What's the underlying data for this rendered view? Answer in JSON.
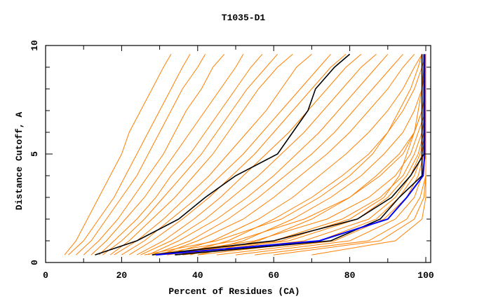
{
  "chart_data": {
    "type": "line",
    "title": "T1035-D1",
    "xlabel": "Percent of Residues (CA)",
    "ylabel": "Distance Cutoff, A",
    "xlim": [
      0,
      100
    ],
    "ylim": [
      0,
      10
    ],
    "x_ticks": [
      "0",
      "20",
      "40",
      "60",
      "80",
      "100"
    ],
    "y_ticks": [
      "0",
      "5",
      "10"
    ],
    "grid": false,
    "legend": "none",
    "colors": {
      "models": "#ff8000",
      "highlight": "#000000",
      "best": "#0000ff"
    },
    "cutoffs": [
      0.35,
      1,
      2,
      3,
      4,
      5,
      6,
      7,
      8,
      9,
      9.6
    ],
    "model_series": [
      [
        5,
        8,
        11,
        14,
        17,
        20,
        22,
        25,
        28,
        31,
        33
      ],
      [
        6,
        10,
        14,
        18,
        21,
        24,
        27,
        30,
        33,
        36,
        38
      ],
      [
        8,
        12,
        16,
        20,
        24,
        27,
        30,
        33,
        36,
        40,
        42
      ],
      [
        10,
        14,
        19,
        23,
        27,
        31,
        34,
        37,
        41,
        44,
        47
      ],
      [
        12,
        16,
        21,
        26,
        30,
        34,
        38,
        42,
        46,
        50,
        52
      ],
      [
        14,
        18,
        24,
        29,
        33,
        38,
        42,
        46,
        50,
        54,
        57
      ],
      [
        15,
        20,
        26,
        31,
        36,
        41,
        45,
        49,
        53,
        58,
        61
      ],
      [
        17,
        22,
        28,
        34,
        39,
        44,
        48,
        52,
        56,
        61,
        65
      ],
      [
        18,
        24,
        31,
        37,
        43,
        48,
        53,
        58,
        62,
        66,
        70
      ],
      [
        20,
        26,
        33,
        40,
        46,
        52,
        57,
        62,
        67,
        72,
        75
      ],
      [
        22,
        28,
        36,
        43,
        49,
        55,
        60,
        65,
        70,
        75,
        79
      ],
      [
        24,
        31,
        39,
        46,
        52,
        58,
        64,
        69,
        74,
        79,
        83
      ],
      [
        25,
        33,
        42,
        49,
        56,
        62,
        68,
        73,
        78,
        83,
        87
      ],
      [
        27,
        35,
        45,
        53,
        60,
        66,
        72,
        77,
        82,
        87,
        90
      ],
      [
        28,
        38,
        48,
        56,
        63,
        70,
        76,
        81,
        86,
        91,
        94
      ],
      [
        30,
        40,
        52,
        60,
        67,
        74,
        80,
        85,
        90,
        94,
        97
      ],
      [
        32,
        44,
        56,
        65,
        72,
        79,
        85,
        90,
        94,
        97,
        99
      ],
      [
        35,
        48,
        60,
        70,
        78,
        85,
        90,
        94,
        97,
        99,
        100
      ],
      [
        38,
        52,
        65,
        75,
        83,
        89,
        94,
        97,
        99,
        100,
        100
      ],
      [
        40,
        56,
        70,
        80,
        87,
        93,
        97,
        99,
        100,
        100,
        100
      ],
      [
        26,
        45,
        62,
        72,
        80,
        86,
        90,
        93,
        96,
        98,
        99
      ],
      [
        28,
        50,
        68,
        80,
        88,
        94,
        97,
        99,
        100,
        100,
        100
      ],
      [
        30,
        55,
        74,
        85,
        92,
        96,
        98,
        100,
        100,
        100,
        100
      ],
      [
        30,
        62,
        80,
        89,
        93,
        95,
        97,
        98,
        99,
        99.5,
        100
      ],
      [
        32,
        60,
        78,
        88,
        94,
        97,
        99,
        100,
        100,
        100,
        100
      ],
      [
        34,
        64,
        82,
        90,
        95,
        98,
        99.5,
        100,
        100,
        100,
        100
      ],
      [
        36,
        68,
        85,
        92,
        96,
        98.5,
        100,
        100,
        100,
        100,
        100
      ],
      [
        40,
        72,
        87,
        93,
        97,
        99,
        100,
        100,
        100,
        100,
        100
      ],
      [
        45,
        76,
        89,
        95,
        98,
        99.5,
        100,
        100,
        100,
        100,
        100
      ],
      [
        50,
        80,
        92,
        97,
        99,
        100,
        100,
        100,
        100,
        100,
        100
      ],
      [
        55,
        85,
        95,
        98.5,
        100,
        100,
        100,
        100,
        100,
        100,
        100
      ],
      [
        60,
        88,
        97,
        99.5,
        100,
        100,
        100,
        100,
        100,
        100,
        100
      ],
      [
        70,
        92,
        99,
        100,
        100,
        100,
        100,
        100,
        100,
        100,
        100
      ]
    ],
    "highlight_series": [
      [
        13,
        24,
        35,
        42,
        50,
        61,
        65,
        69,
        71,
        76,
        80
      ],
      [
        28,
        60,
        82,
        91,
        96,
        99.5,
        99.5,
        99.5,
        99.5,
        99.5,
        99.5
      ],
      [
        34,
        75,
        88,
        93,
        99,
        99,
        99,
        99,
        99,
        99,
        99
      ]
    ],
    "best_series": [
      29,
      72,
      90,
      95,
      99.3,
      99.7,
      99.7,
      99.7,
      99.7,
      99.7,
      99.7
    ]
  }
}
